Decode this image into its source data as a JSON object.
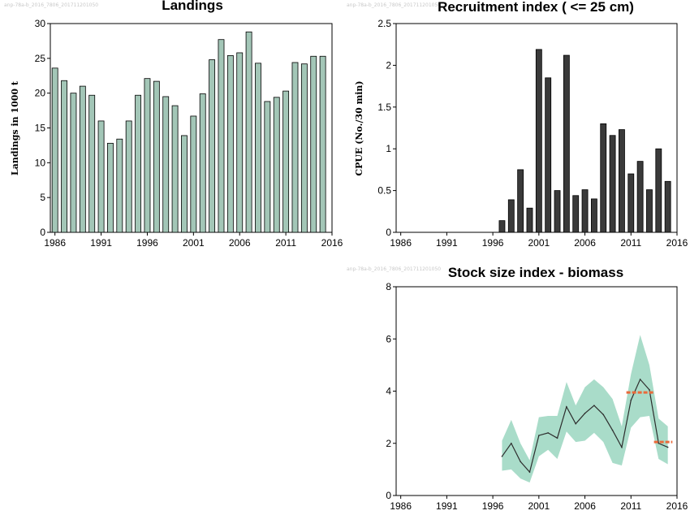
{
  "chart_data": [
    {
      "id": "landings",
      "type": "bar",
      "title": "Landings",
      "watermark": "anp-78a-b_2016_7806_201711201050",
      "xlabel": "",
      "ylabel": "Landings in 1000 t",
      "x": [
        1986,
        1987,
        1988,
        1989,
        1990,
        1991,
        1992,
        1993,
        1994,
        1995,
        1996,
        1997,
        1998,
        1999,
        2000,
        2001,
        2002,
        2003,
        2004,
        2005,
        2006,
        2007,
        2008,
        2009,
        2010,
        2011,
        2012,
        2013,
        2014,
        2015
      ],
      "values": [
        23.6,
        21.8,
        20.0,
        21.0,
        19.7,
        16.0,
        12.8,
        13.4,
        16.0,
        19.7,
        22.1,
        21.7,
        19.5,
        18.2,
        13.9,
        16.7,
        19.9,
        24.8,
        27.7,
        25.4,
        25.8,
        28.8,
        24.3,
        18.8,
        19.4,
        20.3,
        24.4,
        24.2,
        25.3,
        25.3
      ],
      "xlim": [
        1985.5,
        2016
      ],
      "ylim": [
        0,
        30
      ],
      "xticks": [
        "1986",
        "1991",
        "1996",
        "2001",
        "2006",
        "2011",
        "2016"
      ],
      "yticks": [
        "0",
        "5",
        "10",
        "15",
        "20",
        "25",
        "30"
      ],
      "colors": {
        "bar": "#a3c6b7"
      },
      "grid": false
    },
    {
      "id": "recruitment",
      "type": "bar",
      "title": "Recruitment index ( <= 25 cm)",
      "watermark": "anp-78a-b_2016_7806_201711201050",
      "xlabel": "",
      "ylabel": "CPUE (No./30 min)",
      "x": [
        1997,
        1998,
        1999,
        2000,
        2001,
        2002,
        2003,
        2004,
        2005,
        2006,
        2007,
        2008,
        2009,
        2010,
        2011,
        2012,
        2013,
        2014,
        2015
      ],
      "values": [
        0.14,
        0.39,
        0.75,
        0.29,
        2.19,
        1.85,
        0.5,
        2.12,
        0.44,
        0.51,
        0.4,
        1.3,
        1.16,
        1.23,
        0.7,
        0.85,
        0.51,
        1.0,
        0.61
      ],
      "xlim": [
        1985.5,
        2016
      ],
      "ylim": [
        0,
        2.5
      ],
      "xticks": [
        "1986",
        "1991",
        "1996",
        "2001",
        "2006",
        "2011",
        "2016"
      ],
      "yticks": [
        "0",
        "0.5",
        "1",
        "1.5",
        "2",
        "2.5"
      ],
      "colors": {
        "bar": "#3a3a3a"
      },
      "grid": false
    },
    {
      "id": "biomass",
      "type": "line",
      "title": "Stock size index - biomass",
      "watermark": "anp-78a-b_2016_7806_201711201050",
      "xlabel": "",
      "ylabel": "",
      "x": [
        1997,
        1998,
        1999,
        2000,
        2001,
        2002,
        2003,
        2004,
        2005,
        2006,
        2007,
        2008,
        2009,
        2010,
        2011,
        2012,
        2013,
        2014,
        2015
      ],
      "values": [
        1.5,
        2.0,
        1.3,
        0.9,
        2.3,
        2.4,
        2.2,
        3.4,
        2.75,
        3.15,
        3.45,
        3.1,
        2.5,
        1.85,
        3.65,
        4.45,
        4.05,
        2.0,
        1.85
      ],
      "band_low": [
        0.95,
        1.0,
        0.65,
        0.5,
        1.5,
        1.75,
        1.4,
        2.45,
        2.05,
        2.1,
        2.4,
        2.05,
        1.25,
        1.15,
        2.6,
        3.0,
        3.05,
        1.4,
        1.2
      ],
      "band_high": [
        2.1,
        2.9,
        2.0,
        1.35,
        3.0,
        3.05,
        3.05,
        4.35,
        3.45,
        4.15,
        4.45,
        4.15,
        3.7,
        2.65,
        4.65,
        6.15,
        5.0,
        2.95,
        2.65
      ],
      "mean_segments": [
        {
          "x": [
            2010.5,
            2013.5
          ],
          "y": 3.95
        },
        {
          "x": [
            2013.5,
            2015.5
          ],
          "y": 2.05
        }
      ],
      "xlim": [
        1985.5,
        2016
      ],
      "ylim": [
        0,
        8
      ],
      "xticks": [
        "1986",
        "1991",
        "1996",
        "2001",
        "2006",
        "2011",
        "2016"
      ],
      "yticks": [
        "0",
        "2",
        "4",
        "6",
        "8"
      ],
      "colors": {
        "line": "#2d2d2d",
        "band": "#a9dcc9",
        "mean": "#ea6a3a"
      },
      "grid": false
    }
  ]
}
